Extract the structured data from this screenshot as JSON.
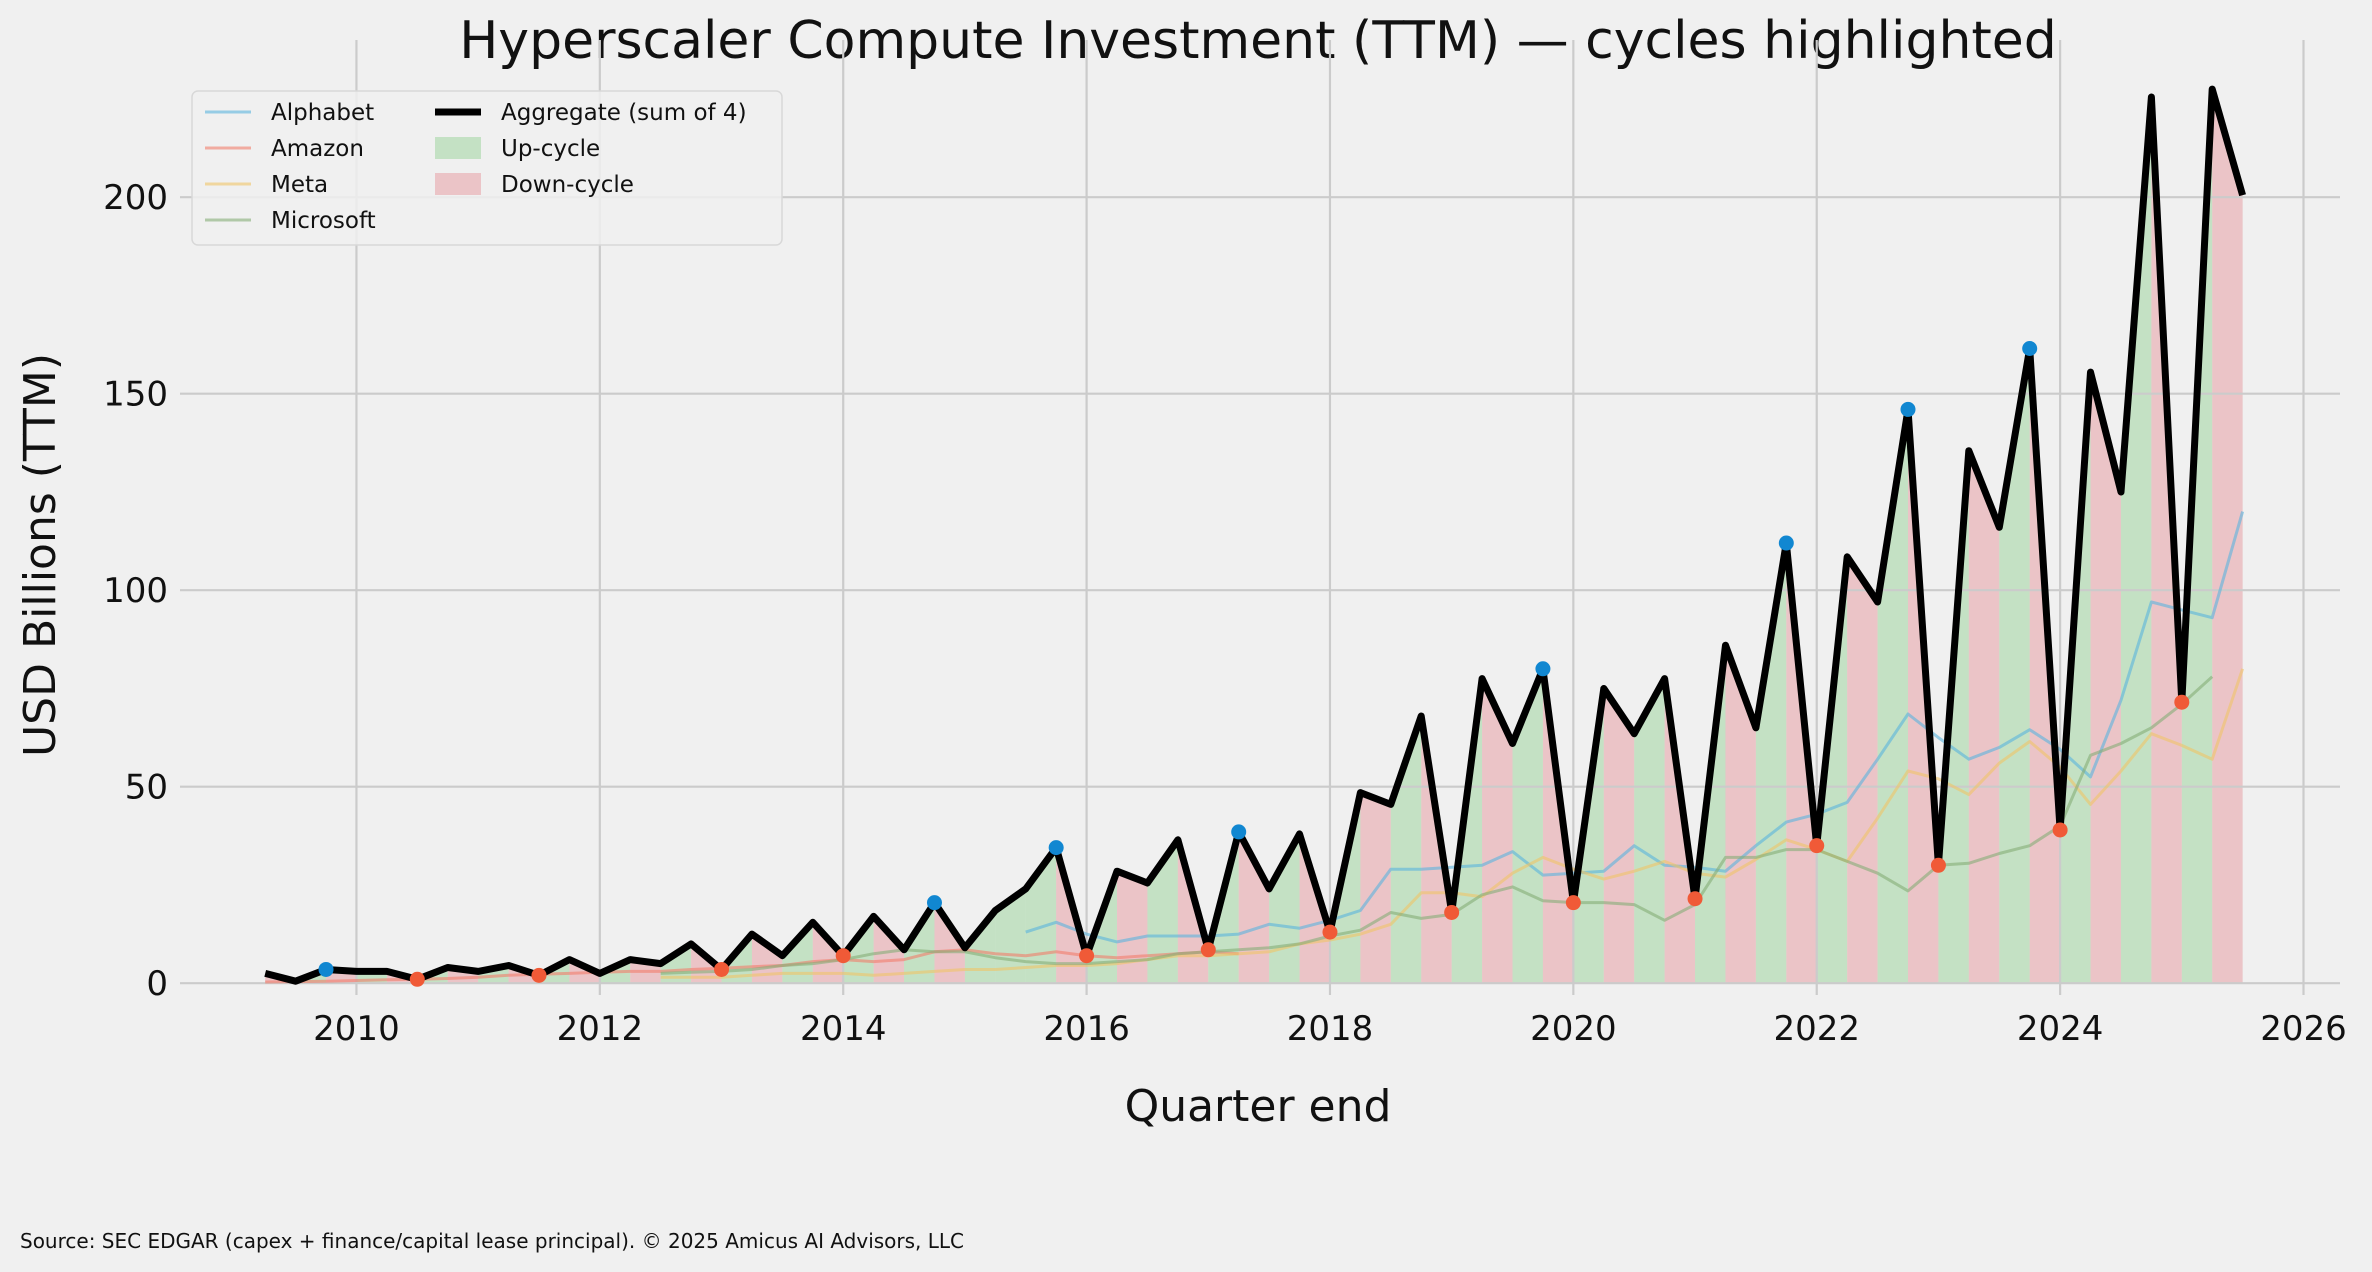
{
  "chart_data": {
    "type": "line",
    "title": "Hyperscaler Compute Investment (TTM) — cycles highlighted",
    "xlabel": "Quarter end",
    "ylabel": "USD Billions (TTM)",
    "xlim": [
      2008.55,
      2026.3
    ],
    "ylim": [
      -3,
      240
    ],
    "xticks": [
      2010,
      2012,
      2014,
      2016,
      2018,
      2020,
      2022,
      2024,
      2026
    ],
    "yticks": [
      0,
      50,
      100,
      150,
      200
    ],
    "grid": true,
    "legend_placement": "top-left",
    "legend": [
      {
        "label": "Alphabet",
        "kind": "line",
        "color": "#5ab4dd"
      },
      {
        "label": "Amazon",
        "kind": "line",
        "color": "#f27d6a"
      },
      {
        "label": "Meta",
        "kind": "line",
        "color": "#f0c468"
      },
      {
        "label": "Microsoft",
        "kind": "line",
        "color": "#86ad76"
      },
      {
        "label": "Aggregate (sum of 4)",
        "kind": "line",
        "color": "#000000"
      },
      {
        "label": "Up-cycle",
        "kind": "patch",
        "color": "#8fce8f"
      },
      {
        "label": "Down-cycle",
        "kind": "patch",
        "color": "#e58e94"
      }
    ],
    "series": [
      {
        "name": "Aggregate (sum of 4)",
        "color": "#000000",
        "x": [
          2009.25,
          2009.5,
          2009.75,
          2010.0,
          2010.25,
          2010.5,
          2010.75,
          2011.0,
          2011.25,
          2011.5,
          2011.75,
          2012.0,
          2012.25,
          2012.5,
          2012.75,
          2013.0,
          2013.25,
          2013.5,
          2013.75,
          2014.0,
          2014.25,
          2014.5,
          2014.75,
          2015.0,
          2015.25,
          2015.5,
          2015.75,
          2016.0,
          2016.25,
          2016.5,
          2016.75,
          2017.0,
          2017.25,
          2017.5,
          2017.75,
          2018.0,
          2018.25,
          2018.5,
          2018.75,
          2019.0,
          2019.25,
          2019.5,
          2019.75,
          2020.0,
          2020.25,
          2020.5,
          2020.75,
          2021.0,
          2021.25,
          2021.5,
          2021.75,
          2022.0,
          2022.25,
          2022.5,
          2022.75,
          2023.0,
          2023.25,
          2023.5,
          2023.75,
          2024.0,
          2024.25,
          2024.5,
          2024.75,
          2025.0,
          2025.25,
          2025.5
        ],
        "values": [
          2.5,
          0.5,
          3.5,
          3,
          3,
          1,
          4,
          3,
          4.5,
          2,
          6,
          2.5,
          6,
          5,
          10,
          3.5,
          12.5,
          7,
          15.5,
          7,
          17,
          8.5,
          20.5,
          9,
          18.5,
          24,
          34.5,
          7,
          28.5,
          25.5,
          36.5,
          8.5,
          38.5,
          24,
          38,
          13,
          48.5,
          45.5,
          68,
          18,
          77.5,
          61,
          80,
          20.5,
          75,
          63.5,
          77.5,
          21.5,
          86,
          65,
          112,
          35,
          108.5,
          97,
          146,
          30,
          135.5,
          116,
          161.5,
          39,
          155.5,
          125,
          225.5,
          71.5,
          227.5,
          200.5
        ]
      },
      {
        "name": "Alphabet",
        "color": "#5ab4dd",
        "x": [
          2015.5,
          2015.75,
          2016.0,
          2016.25,
          2016.5,
          2016.75,
          2017.0,
          2017.25,
          2017.5,
          2017.75,
          2018.0,
          2018.25,
          2018.5,
          2018.75,
          2019.0,
          2019.25,
          2019.5,
          2019.75,
          2020.0,
          2020.25,
          2020.5,
          2020.75,
          2021.0,
          2021.25,
          2021.5,
          2021.75,
          2022.0,
          2022.25,
          2022.5,
          2022.75,
          2023.0,
          2023.25,
          2023.5,
          2023.75,
          2024.0,
          2024.25,
          2024.5,
          2024.75,
          2025.0,
          2025.25,
          2025.5
        ],
        "values": [
          13,
          15.5,
          12.5,
          10.5,
          12,
          12,
          12,
          12.5,
          15,
          14,
          16,
          18.5,
          29,
          29,
          29.5,
          30,
          33.5,
          27.5,
          28,
          28.5,
          35,
          30,
          29.5,
          28.5,
          35,
          41,
          43,
          46,
          57,
          68.5,
          62.5,
          57,
          60,
          64.5,
          59.5,
          52.5,
          72,
          97,
          95,
          93,
          120
        ]
      },
      {
        "name": "Amazon",
        "color": "#f27d6a",
        "x": [
          2009.25,
          2009.5,
          2009.75,
          2010.0,
          2010.25,
          2010.5,
          2010.75,
          2011.0,
          2011.25,
          2011.5,
          2011.75,
          2012.0,
          2012.25,
          2012.5,
          2012.75,
          2013.0,
          2013.25,
          2013.5,
          2013.75,
          2014.0,
          2014.25,
          2014.5,
          2014.75,
          2015.0,
          2015.25,
          2015.5,
          2015.75,
          2016.0,
          2016.25,
          2016.5,
          2016.75,
          2017.0,
          2017.25
        ],
        "values": [
          0.3,
          0.4,
          0.5,
          0.7,
          0.9,
          1,
          1.2,
          1.5,
          2,
          2.3,
          2.5,
          2.8,
          3,
          3,
          3.5,
          3.8,
          4.2,
          4.5,
          5.5,
          6,
          5.5,
          6,
          8,
          8.5,
          7.5,
          7,
          8,
          7,
          6.5,
          7,
          7.5,
          8,
          7.5
        ]
      },
      {
        "name": "Meta",
        "color": "#f0c468",
        "x": [
          2012.5,
          2012.75,
          2013.0,
          2013.25,
          2013.5,
          2013.75,
          2014.0,
          2014.25,
          2014.5,
          2014.75,
          2015.0,
          2015.25,
          2015.5,
          2015.75,
          2016.0,
          2016.25,
          2016.5,
          2016.75,
          2017.0,
          2017.25,
          2017.5,
          2017.75,
          2018.0,
          2018.25,
          2018.5,
          2018.75,
          2019.0,
          2019.25,
          2019.5,
          2019.75,
          2020.0,
          2020.25,
          2020.5,
          2020.75,
          2021.0,
          2021.25,
          2021.5,
          2021.75,
          2022.0,
          2022.25,
          2022.5,
          2022.75,
          2023.0,
          2023.25,
          2023.5,
          2023.75,
          2024.0,
          2024.25,
          2024.5,
          2024.75,
          2025.0,
          2025.25,
          2025.5
        ],
        "values": [
          1.5,
          1.5,
          1.5,
          2,
          2.5,
          2.5,
          2.5,
          2,
          2.5,
          3,
          3.5,
          3.5,
          4,
          4.5,
          4.5,
          5,
          6,
          7,
          7,
          7.5,
          8,
          10,
          11,
          12.5,
          15,
          23,
          23,
          22,
          28,
          32,
          29,
          26.5,
          28.5,
          31,
          28,
          27,
          31.5,
          36.5,
          34,
          31,
          42,
          54,
          52,
          48,
          56,
          61.5,
          55,
          45.5,
          54,
          63.5,
          60.5,
          57,
          80
        ]
      },
      {
        "name": "Microsoft",
        "color": "#86ad76",
        "x": [
          2012.5,
          2012.75,
          2013.0,
          2013.25,
          2013.5,
          2013.75,
          2014.0,
          2014.25,
          2014.5,
          2014.75,
          2015.0,
          2015.25,
          2015.5,
          2015.75,
          2016.0,
          2016.25,
          2016.5,
          2016.75,
          2017.0,
          2017.25,
          2017.5,
          2017.75,
          2018.0,
          2018.25,
          2018.5,
          2018.75,
          2019.0,
          2019.25,
          2019.5,
          2019.75,
          2020.0,
          2020.25,
          2020.5,
          2020.75,
          2021.0,
          2021.25,
          2021.5,
          2021.75,
          2022.0,
          2022.25,
          2022.5,
          2022.75,
          2023.0,
          2023.25,
          2023.5,
          2023.75,
          2024.0,
          2024.25,
          2024.5,
          2024.75,
          2025.0,
          2025.25
        ],
        "values": [
          2.5,
          2.8,
          3,
          3.5,
          4.5,
          5,
          6,
          7.5,
          8.5,
          8,
          8,
          6.5,
          5.5,
          5,
          5,
          5.5,
          6,
          7.5,
          8,
          8.5,
          9,
          10,
          12,
          13.5,
          18,
          16.5,
          17.5,
          22.5,
          24.5,
          21,
          20.5,
          20.5,
          20,
          16,
          20,
          32,
          32,
          34,
          34,
          31,
          28,
          23.5,
          30,
          30.5,
          33,
          35,
          40,
          58,
          61,
          65,
          71,
          78
        ]
      }
    ],
    "peaks": {
      "x": [
        2009.75,
        2014.75,
        2015.75,
        2017.25,
        2019.75,
        2021.75,
        2022.75,
        2023.75
      ],
      "values": [
        3.5,
        20.5,
        34.5,
        38.5,
        80,
        112,
        146,
        161.5
      ]
    },
    "troughs": {
      "x": [
        2010.5,
        2011.5,
        2013.0,
        2014.0,
        2016.0,
        2017.0,
        2018.0,
        2019.0,
        2020.0,
        2021.0,
        2022.0,
        2023.0,
        2024.0,
        2025.0
      ],
      "values": [
        1,
        2,
        3.5,
        7,
        7,
        8.5,
        13,
        18,
        20.5,
        21.5,
        35,
        30,
        39,
        71.5
      ]
    }
  },
  "source_note": "Source: SEC EDGAR (capex + finance/capital lease principal).  © 2025 Amicus AI Advisors, LLC",
  "colors": {
    "peak": "#1187d1",
    "trough": "#f05a37",
    "up_fill": "#8fce8f",
    "down_fill": "#e58e94",
    "grid": "#cbcbcb",
    "background": "#f0f0f0"
  }
}
